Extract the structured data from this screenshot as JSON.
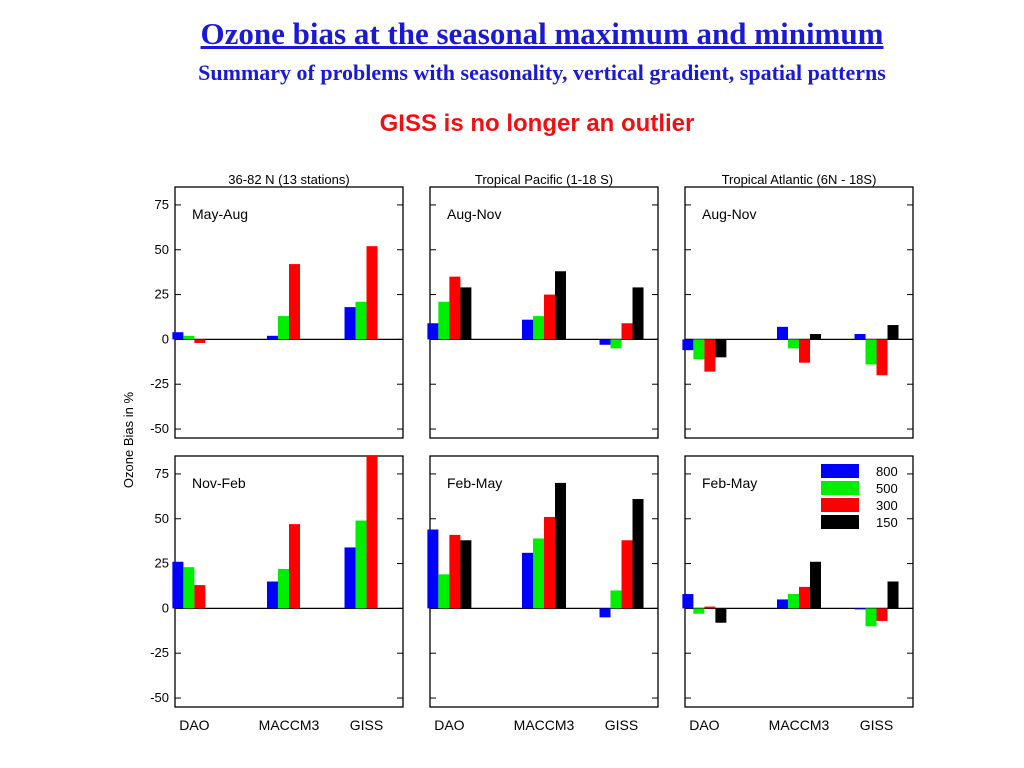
{
  "header": {
    "title": "Ozone bias at the seasonal maximum and minimum",
    "subtitle": "Summary of problems with seasonality, vertical gradient, spatial patterns",
    "note": "GISS is no longer an outlier"
  },
  "chart_data": {
    "type": "bar",
    "ylabel": "Ozone Bias in %",
    "ylim": [
      -55,
      85
    ],
    "yticks": [
      "75",
      "50",
      "25",
      "0",
      "-25",
      "-50"
    ],
    "categories": [
      "DAO",
      "MACCM3",
      "GISS"
    ],
    "legend": {
      "placement": "top-right of bottom-right panel",
      "entries": [
        {
          "label": "800",
          "color": "#0000ff"
        },
        {
          "label": "500",
          "color": "#00ee00"
        },
        {
          "label": "300",
          "color": "#ff0000"
        },
        {
          "label": "150",
          "color": "#000000"
        }
      ]
    },
    "columns": [
      "36-82 N (13 stations)",
      "Tropical Pacific (1-18 S)",
      "Tropical Atlantic (6N - 18S)"
    ],
    "panels": [
      {
        "row": 0,
        "col": 0,
        "season": "May-Aug",
        "values": [
          [
            4,
            2,
            -2,
            null
          ],
          [
            2,
            13,
            42,
            null
          ],
          [
            18,
            21,
            52,
            null
          ]
        ]
      },
      {
        "row": 0,
        "col": 1,
        "season": "Aug-Nov",
        "values": [
          [
            9,
            21,
            35,
            29
          ],
          [
            11,
            13,
            25,
            38
          ],
          [
            -3,
            -5,
            9,
            29
          ]
        ]
      },
      {
        "row": 0,
        "col": 2,
        "season": "Aug-Nov",
        "values": [
          [
            -6,
            -11,
            -18,
            -10
          ],
          [
            7,
            -5,
            -13,
            3
          ],
          [
            3,
            -14,
            -20,
            8
          ]
        ]
      },
      {
        "row": 1,
        "col": 0,
        "season": "Nov-Feb",
        "values": [
          [
            26,
            23,
            13,
            null
          ],
          [
            15,
            22,
            47,
            null
          ],
          [
            34,
            49,
            85,
            null
          ]
        ]
      },
      {
        "row": 1,
        "col": 1,
        "season": "Feb-May",
        "values": [
          [
            44,
            19,
            41,
            38
          ],
          [
            31,
            39,
            51,
            70
          ],
          [
            -5,
            10,
            38,
            61
          ]
        ]
      },
      {
        "row": 1,
        "col": 2,
        "season": "Feb-May",
        "values": [
          [
            8,
            -3,
            1,
            -8
          ],
          [
            5,
            8,
            12,
            26
          ],
          [
            0,
            -10,
            -7,
            15
          ]
        ]
      }
    ]
  }
}
